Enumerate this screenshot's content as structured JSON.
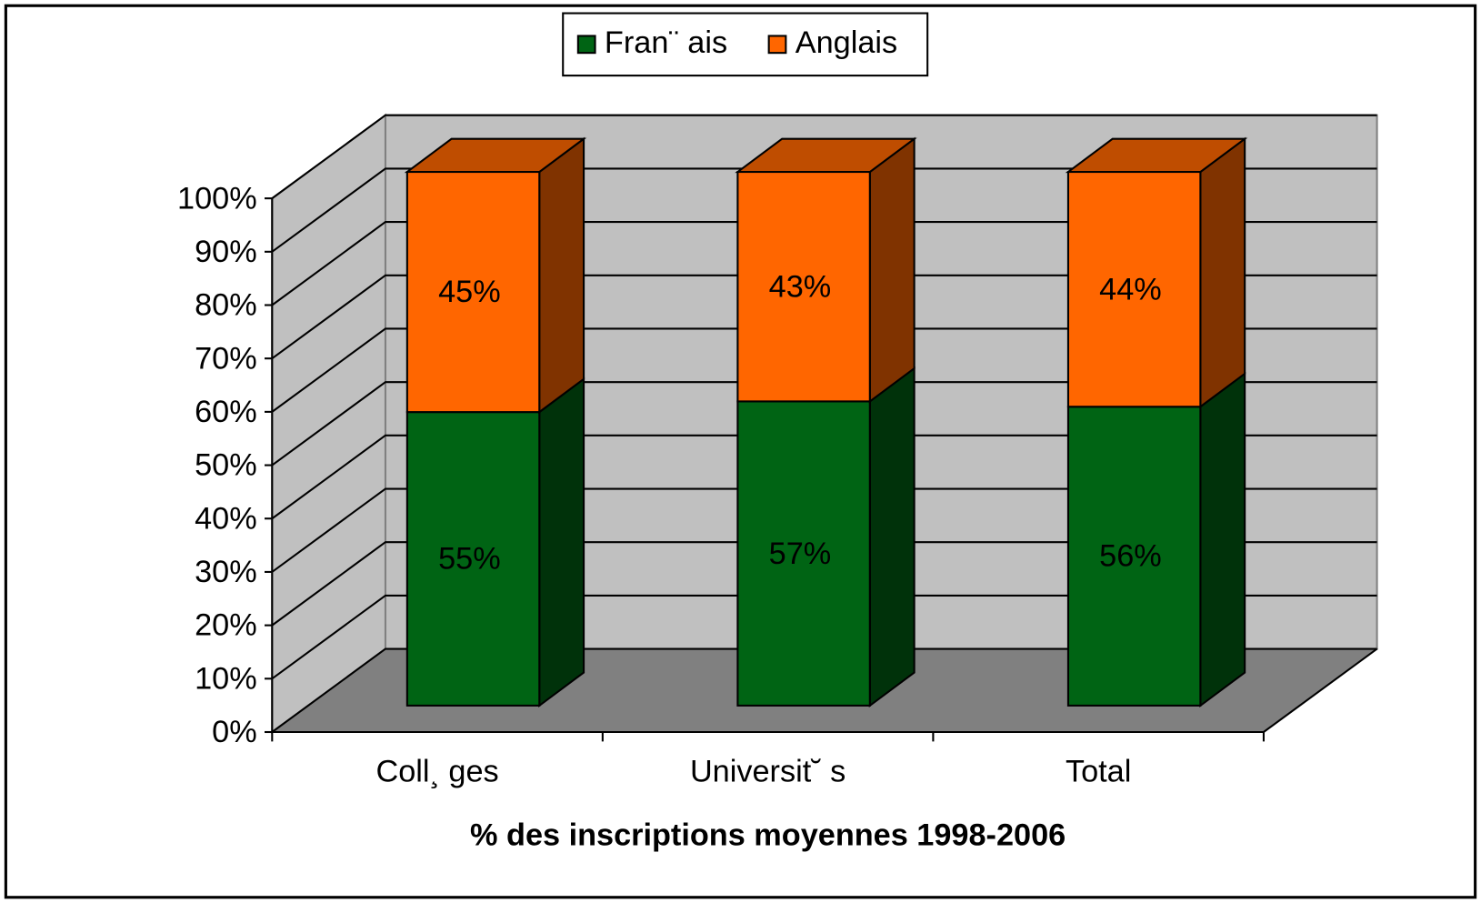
{
  "chart_data": {
    "type": "bar3d_stacked",
    "categories": [
      "Coll¸ ges",
      "Universit˘ s",
      "Total"
    ],
    "series": [
      {
        "name": "Fran¨ ais",
        "color": "#006414",
        "values": [
          55,
          57,
          56
        ],
        "value_labels": [
          "55%",
          "57%",
          "56%"
        ]
      },
      {
        "name": "Anglais",
        "color": "#ff6600",
        "values": [
          45,
          43,
          44
        ],
        "value_labels": [
          "45%",
          "43%",
          "44%"
        ]
      }
    ],
    "x_label": "% des inscriptions moyennes 1998-2006",
    "ylim": [
      0,
      100
    ],
    "yticks": [
      {
        "value": 0,
        "label": "0%"
      },
      {
        "value": 10,
        "label": "10%"
      },
      {
        "value": 20,
        "label": "20%"
      },
      {
        "value": 30,
        "label": "30%"
      },
      {
        "value": 40,
        "label": "40%"
      },
      {
        "value": 50,
        "label": "50%"
      },
      {
        "value": 60,
        "label": "60%"
      },
      {
        "value": 70,
        "label": "70%"
      },
      {
        "value": 80,
        "label": "80%"
      },
      {
        "value": 90,
        "label": "90%"
      },
      {
        "value": 100,
        "label": "100%"
      }
    ],
    "grid": true,
    "legend": "top"
  }
}
